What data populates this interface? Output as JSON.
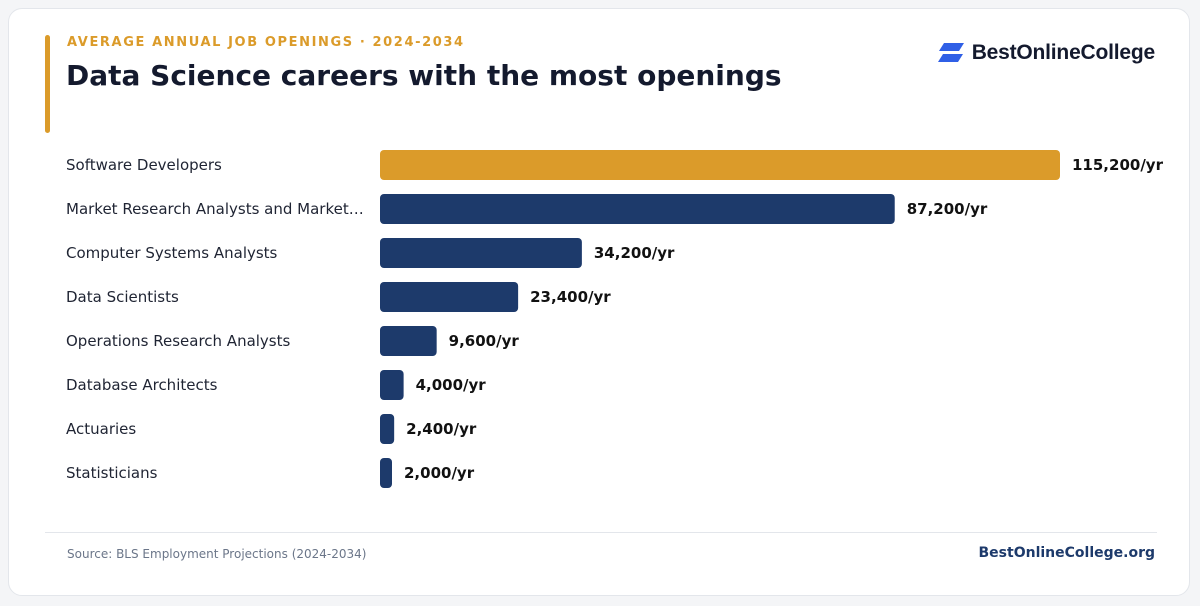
{
  "header": {
    "eyebrow": "AVERAGE ANNUAL JOB OPENINGS · 2024-2034",
    "title": "Data Science careers with the most openings",
    "brand": "BestOnlineCollege"
  },
  "footer": {
    "source": "Source: BLS Employment Projections (2024-2034)",
    "site": "BestOnlineCollege.org"
  },
  "colors": {
    "highlight": "#db9b2a",
    "bar": "#1d3a6b",
    "label": "#1f2433",
    "value": "#111111",
    "brand_mark": "#2f5fe6"
  },
  "chart_data": {
    "type": "bar",
    "orientation": "horizontal",
    "categories": [
      "Software Developers",
      "Market Research Analysts and Market…",
      "Computer Systems Analysts",
      "Data Scientists",
      "Operations Research Analysts",
      "Database Architects",
      "Actuaries",
      "Statisticians"
    ],
    "values": [
      115200,
      87200,
      34200,
      23400,
      9600,
      4000,
      2400,
      2000
    ],
    "value_labels": [
      "115,200/yr",
      "87,200/yr",
      "34,200/yr",
      "23,400/yr",
      "9,600/yr",
      "4,000/yr",
      "2,400/yr",
      "2,000/yr"
    ],
    "highlight_index": 0,
    "xlim": [
      0,
      115200
    ],
    "grid": false,
    "legend": "none"
  }
}
